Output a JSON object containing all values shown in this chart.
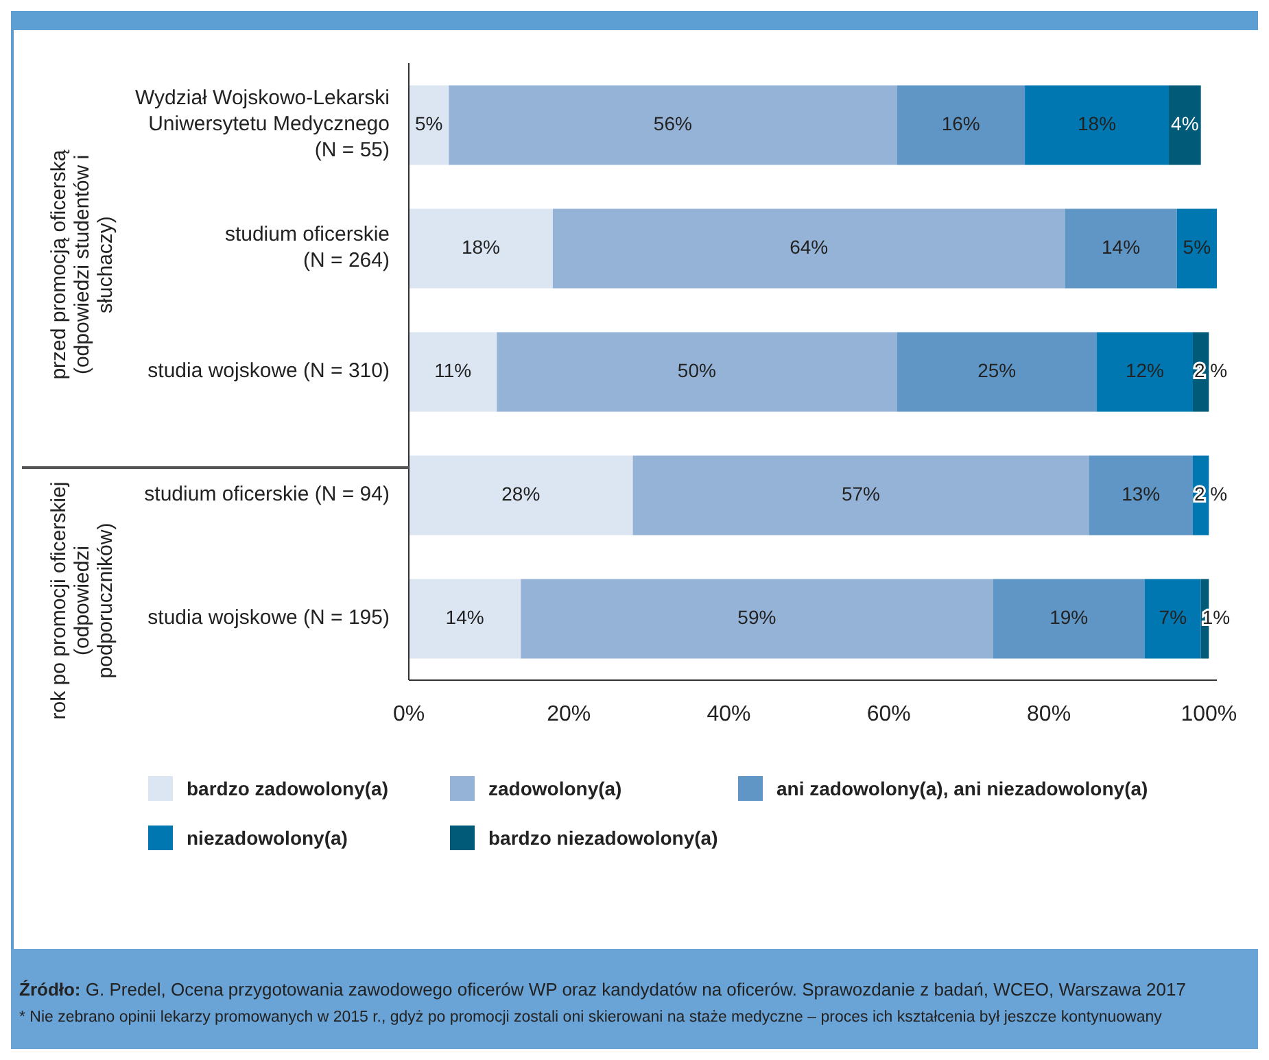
{
  "chart_data": {
    "type": "bar",
    "orientation": "horizontal",
    "stacked": true,
    "categories": [
      "Wydział Wojskowo-Lekarski Uniwersytetu Medycznego (N = 55)",
      "studium oficerskie (N = 264)",
      "studia wojskowe (N = 310)",
      "studium oficerskie (N = 94)",
      "studia wojskowe (N = 195)"
    ],
    "series": [
      {
        "name": "bardzo zadowolony(a)",
        "color": "#dce6f2",
        "values": [
          5,
          18,
          11,
          28,
          14
        ],
        "value_labels": [
          "5%",
          "18%",
          "11%",
          "28%",
          "14%"
        ]
      },
      {
        "name": "zadowolony(a)",
        "color": "#95b3d7",
        "values": [
          56,
          64,
          50,
          57,
          59
        ],
        "value_labels": [
          "56%",
          "64%",
          "50%",
          "57%",
          "59%"
        ]
      },
      {
        "name": "ani zadowolony(a), ani niezadowolony(a)",
        "color": "#5f96c5",
        "values": [
          16,
          14,
          25,
          13,
          19
        ],
        "value_labels": [
          "16%",
          "14%",
          "25%",
          "13%",
          "19%"
        ]
      },
      {
        "name": "niezadowolony(a)",
        "color": "#0077b0",
        "values": [
          18,
          5,
          12,
          2,
          7
        ],
        "value_labels": [
          "18%",
          "5%",
          "12%",
          "2 %",
          "7%"
        ]
      },
      {
        "name": "bardzo niezadowolony(a)",
        "color": "#005a78",
        "values": [
          4,
          null,
          2,
          null,
          1
        ],
        "value_labels": [
          "4%",
          null,
          "2 %",
          null,
          "1%"
        ]
      }
    ],
    "xlim": [
      0,
      101
    ],
    "xticks": [
      {
        "value": 0,
        "label": "0%"
      },
      {
        "value": 20,
        "label": "20%"
      },
      {
        "value": 40,
        "label": "40%"
      },
      {
        "value": 60,
        "label": "60%"
      },
      {
        "value": 80,
        "label": "80%"
      },
      {
        "value": 100,
        "label": "100%"
      }
    ],
    "grid": false,
    "legend": "bottom",
    "annotations": [
      "przed promocją oficerską (odpowiedzi studentów i słuchaczy)",
      "rok po promocji oficerskiej (odpowiedzi podporuczników)",
      "Źródło: G. Predel, Ocena przygotowania zawodowego oficerów WP oraz kandydatów na oficerów. Sprawozdanie z badań, WCEO, Warszawa 2017",
      "* Nie zebrano opinii lekarzy promowanych w 2015 r., gdyż po promocji zostali oni skierowani na staże medyczne – proces ich kształcenia był jeszcze kontynuowany"
    ]
  }
}
